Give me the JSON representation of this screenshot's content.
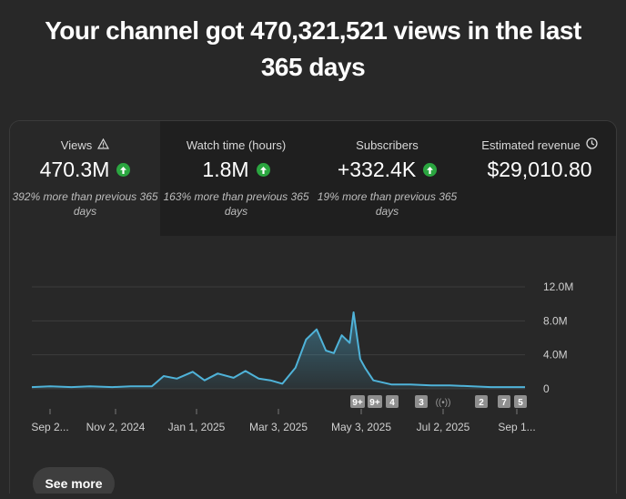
{
  "headline": {
    "line1": "Your channel got 470,321,521 views in the last",
    "line2": "365 days"
  },
  "metrics": [
    {
      "label": "Views",
      "icon": "warning-icon",
      "value": "470.3M",
      "trend": "up",
      "comparison": "392% more than previous 365 days",
      "selected": true
    },
    {
      "label": "Watch time (hours)",
      "icon": "",
      "value": "1.8M",
      "trend": "up",
      "comparison": "163% more than previous 365 days",
      "selected": false
    },
    {
      "label": "Subscribers",
      "icon": "",
      "value": "+332.4K",
      "trend": "up",
      "comparison": "19% more than previous 365 days",
      "selected": false
    },
    {
      "label": "Estimated revenue",
      "icon": "clock-icon",
      "value": "$29,010.80",
      "trend": "",
      "comparison": "",
      "selected": false
    }
  ],
  "colors": {
    "line": "#4fb3d9",
    "up": "#2ba640",
    "grid": "#3d3d3d"
  },
  "chart_data": {
    "type": "area",
    "x": [
      "2024-09-01",
      "2024-09-15",
      "2024-10-01",
      "2024-10-15",
      "2024-11-01",
      "2024-11-15",
      "2024-12-01",
      "2024-12-10",
      "2024-12-20",
      "2025-01-01",
      "2025-01-10",
      "2025-01-20",
      "2025-02-01",
      "2025-02-10",
      "2025-02-20",
      "2025-03-01",
      "2025-03-10",
      "2025-03-20",
      "2025-03-28",
      "2025-04-05",
      "2025-04-12",
      "2025-04-18",
      "2025-04-24",
      "2025-04-30",
      "2025-05-03",
      "2025-05-08",
      "2025-05-12",
      "2025-05-18",
      "2025-06-01",
      "2025-06-15",
      "2025-07-01",
      "2025-07-15",
      "2025-08-01",
      "2025-08-15",
      "2025-09-01",
      "2025-09-10"
    ],
    "values": [
      0.2,
      0.3,
      0.2,
      0.3,
      0.2,
      0.3,
      0.3,
      1.5,
      1.2,
      2.0,
      1.0,
      1.8,
      1.3,
      2.1,
      1.2,
      1.0,
      0.6,
      2.5,
      5.8,
      7.0,
      4.5,
      4.2,
      6.3,
      5.4,
      9.0,
      3.5,
      2.4,
      1.0,
      0.5,
      0.5,
      0.4,
      0.4,
      0.3,
      0.2,
      0.2,
      0.2
    ],
    "y_unit": "M",
    "y_ticks": [
      "0",
      "4.0M",
      "8.0M",
      "12.0M"
    ],
    "ylim": [
      0,
      12
    ],
    "x_tick_labels": [
      "Sep 2...",
      "Nov 2, 2024",
      "Jan 1, 2025",
      "Mar 3, 2025",
      "May 3, 2025",
      "Jul 2, 2025",
      "Sep 1..."
    ],
    "grid": true
  },
  "markers": [
    {
      "label": "9+",
      "kind": "badge"
    },
    {
      "label": "9+",
      "kind": "badge"
    },
    {
      "label": "4",
      "kind": "badge"
    },
    {
      "label": "3",
      "kind": "badge"
    },
    {
      "label": "((•))",
      "kind": "live-icon"
    },
    {
      "label": "2",
      "kind": "badge"
    },
    {
      "label": "7",
      "kind": "badge"
    },
    {
      "label": "5",
      "kind": "badge"
    }
  ],
  "see_more_label": "See more"
}
